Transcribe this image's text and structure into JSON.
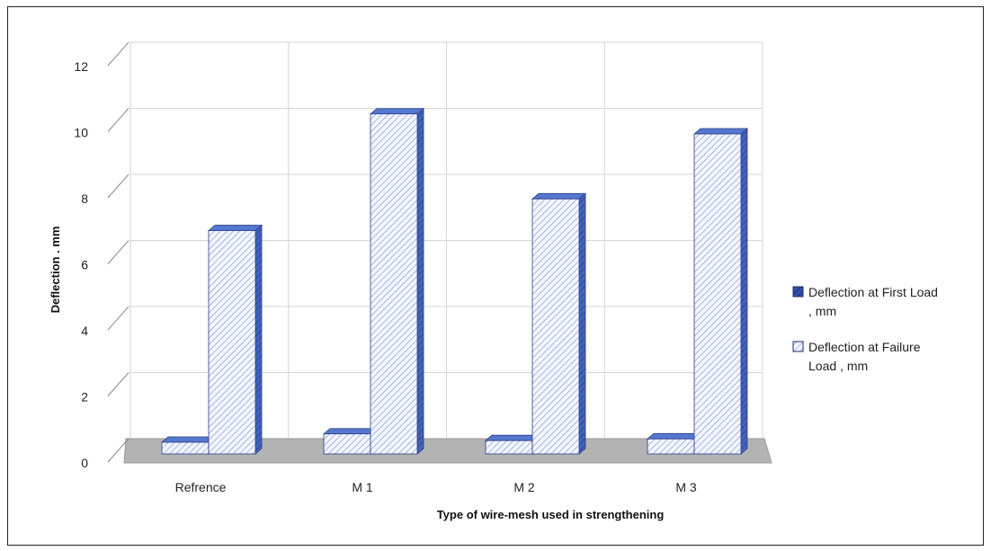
{
  "chart_data": {
    "type": "bar",
    "title": "",
    "xlabel": "Type of wire-mesh used in strengthening",
    "ylabel": "Deflection . mm",
    "categories": [
      "Refrence",
      "M 1",
      "M 2",
      "M 3"
    ],
    "ylim": [
      0,
      12
    ],
    "yticks": [
      "0",
      "2",
      "4",
      "6",
      "8",
      "10",
      "12"
    ],
    "grid": true,
    "legend_position": "right",
    "series": [
      {
        "name": "Deflection at First Load , mm",
        "legend_lines": [
          "Deflection at First Load",
          ", mm"
        ],
        "values": [
          0.35,
          0.6,
          0.4,
          0.45
        ],
        "color": "#4a6bc4",
        "pattern": "dark-hatch"
      },
      {
        "name": "Deflection at Failure Load , mm",
        "legend_lines": [
          "Deflection at Failure",
          "Load , mm"
        ],
        "values": [
          6.7,
          10.2,
          7.65,
          9.6
        ],
        "color": "#4a6bc4",
        "pattern": "light-hatch"
      }
    ]
  }
}
